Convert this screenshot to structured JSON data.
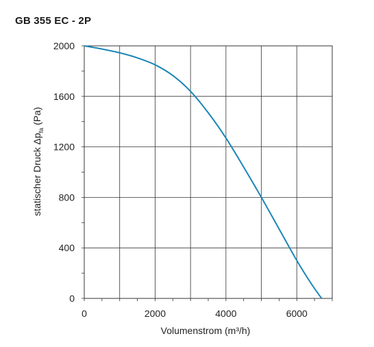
{
  "chart_title": "GB 355 EC - 2P",
  "chart_data": {
    "type": "line",
    "title": "GB 355 EC - 2P",
    "xlabel": "Volumenstrom (m³/h)",
    "ylabel": "statischer Druck Δp",
    "ylabel_sub": "fa",
    "ylabel_unit": " (Pa)",
    "xlim": [
      0,
      7000
    ],
    "ylim": [
      0,
      2000
    ],
    "x_ticks": [
      0,
      2000,
      4000,
      6000
    ],
    "y_ticks": [
      0,
      400,
      800,
      1200,
      1600,
      2000
    ],
    "x_minor_step": 500,
    "y_minor_step": 200,
    "grid_x_step": 1000,
    "grid_y_step": 400,
    "grid": true,
    "series": [
      {
        "color": "#1a85b7",
        "x": [
          0,
          500,
          1000,
          1500,
          2000,
          2500,
          3000,
          3500,
          4000,
          4500,
          5000,
          5500,
          6000,
          6400,
          6700
        ],
        "y": [
          2000,
          1975,
          1945,
          1905,
          1850,
          1765,
          1640,
          1470,
          1270,
          1040,
          800,
          550,
          300,
          120,
          0
        ]
      }
    ]
  }
}
